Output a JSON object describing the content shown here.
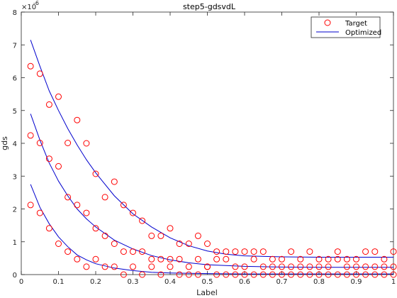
{
  "chart_data": {
    "type": "scatter",
    "title": "step5-gdsvdL",
    "xlabel": "Label",
    "ylabel": "gds",
    "xlim": [
      0,
      1
    ],
    "ylim": [
      0,
      8e-06
    ],
    "y_exponent_label": "×10",
    "y_exponent_power": "-6",
    "x_ticks": [
      0,
      0.1,
      0.2,
      0.3,
      0.4,
      0.5,
      0.6,
      0.7,
      0.8,
      0.9,
      1
    ],
    "x_tick_labels": [
      "0",
      "0.1",
      "0.2",
      "0.3",
      "0.4",
      "0.5",
      "0.6",
      "0.7",
      "0.8",
      "0.9",
      "1"
    ],
    "y_ticks": [
      0,
      1e-06,
      2e-06,
      3e-06,
      4e-06,
      5e-06,
      6e-06,
      7e-06,
      8e-06
    ],
    "y_tick_labels": [
      "0",
      "1",
      "2",
      "3",
      "4",
      "5",
      "6",
      "7",
      "8"
    ],
    "grid": false,
    "legend": {
      "position": "top-right",
      "entries": [
        {
          "label": "Target",
          "marker": "circle",
          "color": "#ff0000"
        },
        {
          "label": "Optimized",
          "marker": "line",
          "color": "#0000cd"
        }
      ]
    },
    "series": [
      {
        "name": "Target",
        "style": "markers",
        "color": "#ff0000",
        "points": [
          [
            0.025,
            6.35e-06
          ],
          [
            0.05,
            6.12e-06
          ],
          [
            0.075,
            5.18e-06
          ],
          [
            0.1,
            5.42e-06
          ],
          [
            0.125,
            4.01e-06
          ],
          [
            0.15,
            4.71e-06
          ],
          [
            0.175,
            4e-06
          ],
          [
            0.2,
            3.07e-06
          ],
          [
            0.225,
            2.36e-06
          ],
          [
            0.25,
            2.83e-06
          ],
          [
            0.275,
            2.12e-06
          ],
          [
            0.3,
            1.88e-06
          ],
          [
            0.325,
            1.64e-06
          ],
          [
            0.35,
            1.18e-06
          ],
          [
            0.375,
            1.18e-06
          ],
          [
            0.4,
            1.41e-06
          ],
          [
            0.425,
            9.4e-07
          ],
          [
            0.45,
            9.4e-07
          ],
          [
            0.475,
            1.18e-06
          ],
          [
            0.5,
            9.4e-07
          ],
          [
            0.525,
            7e-07
          ],
          [
            0.55,
            7e-07
          ],
          [
            0.575,
            7e-07
          ],
          [
            0.6,
            7e-07
          ],
          [
            0.625,
            7e-07
          ],
          [
            0.65,
            7e-07
          ],
          [
            0.675,
            4.7e-07
          ],
          [
            0.7,
            4.7e-07
          ],
          [
            0.725,
            7e-07
          ],
          [
            0.75,
            4.7e-07
          ],
          [
            0.775,
            7e-07
          ],
          [
            0.8,
            4.7e-07
          ],
          [
            0.825,
            4.7e-07
          ],
          [
            0.85,
            7e-07
          ],
          [
            0.875,
            4.7e-07
          ],
          [
            0.9,
            4.7e-07
          ],
          [
            0.925,
            7e-07
          ],
          [
            0.95,
            7e-07
          ],
          [
            0.975,
            4.7e-07
          ],
          [
            1.0,
            7e-07
          ],
          [
            0.025,
            4.24e-06
          ],
          [
            0.05,
            4.01e-06
          ],
          [
            0.075,
            3.53e-06
          ],
          [
            0.1,
            3.3e-06
          ],
          [
            0.125,
            2.36e-06
          ],
          [
            0.15,
            2.12e-06
          ],
          [
            0.175,
            1.88e-06
          ],
          [
            0.2,
            1.41e-06
          ],
          [
            0.225,
            1.18e-06
          ],
          [
            0.25,
            9.4e-07
          ],
          [
            0.275,
            7e-07
          ],
          [
            0.3,
            7e-07
          ],
          [
            0.325,
            7e-07
          ],
          [
            0.35,
            4.7e-07
          ],
          [
            0.375,
            4.7e-07
          ],
          [
            0.4,
            4.7e-07
          ],
          [
            0.425,
            4.7e-07
          ],
          [
            0.45,
            2.4e-07
          ],
          [
            0.475,
            4.7e-07
          ],
          [
            0.5,
            2.4e-07
          ],
          [
            0.525,
            4.7e-07
          ],
          [
            0.55,
            4.7e-07
          ],
          [
            0.575,
            2.4e-07
          ],
          [
            0.6,
            2.4e-07
          ],
          [
            0.625,
            4.7e-07
          ],
          [
            0.65,
            2.4e-07
          ],
          [
            0.675,
            2.4e-07
          ],
          [
            0.7,
            2.4e-07
          ],
          [
            0.725,
            2.4e-07
          ],
          [
            0.75,
            2.4e-07
          ],
          [
            0.775,
            2.4e-07
          ],
          [
            0.8,
            2.4e-07
          ],
          [
            0.825,
            2.4e-07
          ],
          [
            0.85,
            4.7e-07
          ],
          [
            0.875,
            2.4e-07
          ],
          [
            0.9,
            2.4e-07
          ],
          [
            0.925,
            2.4e-07
          ],
          [
            0.95,
            2.4e-07
          ],
          [
            0.975,
            2.4e-07
          ],
          [
            1.0,
            2.4e-07
          ],
          [
            0.025,
            2.12e-06
          ],
          [
            0.05,
            1.88e-06
          ],
          [
            0.075,
            1.41e-06
          ],
          [
            0.1,
            9.4e-07
          ],
          [
            0.125,
            7e-07
          ],
          [
            0.15,
            4.7e-07
          ],
          [
            0.175,
            2.4e-07
          ],
          [
            0.2,
            4.7e-07
          ],
          [
            0.225,
            2.4e-07
          ],
          [
            0.25,
            2.4e-07
          ],
          [
            0.275,
            0.0
          ],
          [
            0.3,
            2.4e-07
          ],
          [
            0.325,
            0.0
          ],
          [
            0.35,
            2.4e-07
          ],
          [
            0.375,
            0.0
          ],
          [
            0.4,
            2.4e-07
          ],
          [
            0.425,
            0.0
          ],
          [
            0.45,
            0.0
          ],
          [
            0.475,
            0.0
          ],
          [
            0.5,
            2.4e-07
          ],
          [
            0.525,
            0.0
          ],
          [
            0.55,
            0.0
          ],
          [
            0.575,
            0.0
          ],
          [
            0.6,
            0.0
          ],
          [
            0.625,
            0.0
          ],
          [
            0.65,
            0.0
          ],
          [
            0.675,
            0.0
          ],
          [
            0.7,
            0.0
          ],
          [
            0.725,
            0.0
          ],
          [
            0.75,
            0.0
          ],
          [
            0.775,
            0.0
          ],
          [
            0.8,
            0.0
          ],
          [
            0.825,
            0.0
          ],
          [
            0.85,
            0.0
          ],
          [
            0.875,
            0.0
          ],
          [
            0.9,
            0.0
          ],
          [
            0.925,
            0.0
          ],
          [
            0.95,
            0.0
          ],
          [
            0.975,
            0.0
          ],
          [
            1.0,
            0.0
          ]
        ]
      },
      {
        "name": "Optimized",
        "style": "line",
        "color": "#0000cd",
        "curves": [
          [
            [
              0.025,
              7.15e-06
            ],
            [
              0.05,
              6.35e-06
            ],
            [
              0.075,
              5.6e-06
            ],
            [
              0.1,
              5e-06
            ],
            [
              0.125,
              4.45e-06
            ],
            [
              0.15,
              3.95e-06
            ],
            [
              0.175,
              3.5e-06
            ],
            [
              0.2,
              3.1e-06
            ],
            [
              0.25,
              2.4e-06
            ],
            [
              0.3,
              1.85e-06
            ],
            [
              0.35,
              1.45e-06
            ],
            [
              0.4,
              1.12e-06
            ],
            [
              0.45,
              8.8e-07
            ],
            [
              0.5,
              7.2e-07
            ],
            [
              0.55,
              6.2e-07
            ],
            [
              0.6,
              5.7e-07
            ],
            [
              0.7,
              5.4e-07
            ],
            [
              0.8,
              5.3e-07
            ],
            [
              0.9,
              5.3e-07
            ],
            [
              1.0,
              5.3e-07
            ]
          ],
          [
            [
              0.025,
              4.9e-06
            ],
            [
              0.05,
              4.1e-06
            ],
            [
              0.075,
              3.4e-06
            ],
            [
              0.1,
              2.85e-06
            ],
            [
              0.125,
              2.4e-06
            ],
            [
              0.15,
              2e-06
            ],
            [
              0.175,
              1.7e-06
            ],
            [
              0.2,
              1.45e-06
            ],
            [
              0.25,
              1.05e-06
            ],
            [
              0.3,
              7.8e-07
            ],
            [
              0.35,
              5.8e-07
            ],
            [
              0.4,
              4.5e-07
            ],
            [
              0.45,
              3.6e-07
            ],
            [
              0.5,
              3e-07
            ],
            [
              0.6,
              2.5e-07
            ],
            [
              0.7,
              2.3e-07
            ],
            [
              0.8,
              2.2e-07
            ],
            [
              0.9,
              2.2e-07
            ],
            [
              1.0,
              2.2e-07
            ]
          ],
          [
            [
              0.025,
              2.75e-06
            ],
            [
              0.05,
              2.05e-06
            ],
            [
              0.075,
              1.55e-06
            ],
            [
              0.1,
              1.15e-06
            ],
            [
              0.125,
              8.5e-07
            ],
            [
              0.15,
              6e-07
            ],
            [
              0.175,
              4.5e-07
            ],
            [
              0.2,
              3.3e-07
            ],
            [
              0.25,
              2e-07
            ],
            [
              0.3,
              1.2e-07
            ],
            [
              0.35,
              7e-08
            ],
            [
              0.4,
              5e-08
            ],
            [
              0.5,
              3e-08
            ],
            [
              0.6,
              2e-08
            ],
            [
              0.8,
              2e-08
            ],
            [
              1.0,
              2e-08
            ]
          ]
        ]
      }
    ]
  }
}
